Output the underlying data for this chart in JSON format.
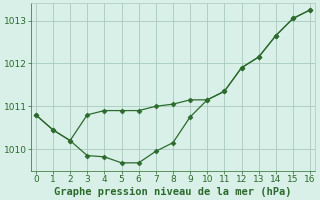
{
  "line_top_x": [
    0,
    1,
    2,
    3,
    4,
    5,
    6,
    7,
    8,
    9,
    10,
    11,
    12,
    13,
    14,
    15,
    16
  ],
  "line_top_y": [
    1010.8,
    1010.45,
    1010.2,
    1010.8,
    1010.9,
    1010.9,
    1010.9,
    1011.0,
    1011.05,
    1011.15,
    1011.15,
    1011.35,
    1011.9,
    1012.15,
    1012.65,
    1013.05,
    1013.25
  ],
  "line_bot_x": [
    0,
    1,
    2,
    3,
    4,
    5,
    6,
    7,
    8,
    9,
    10,
    11,
    12,
    13,
    14,
    15,
    16
  ],
  "line_bot_y": [
    1010.8,
    1010.45,
    1010.2,
    1009.85,
    1009.82,
    1009.68,
    1009.68,
    1009.95,
    1010.15,
    1010.75,
    1011.15,
    1011.35,
    1011.9,
    1012.15,
    1012.65,
    1013.05,
    1013.25
  ],
  "line_color": "#2d6a2d",
  "bg_color": "#d8f0e8",
  "grid_color": "#a8ccbc",
  "xlabel": "Graphe pression niveau de la mer (hPa)",
  "ylim": [
    1009.5,
    1013.4
  ],
  "xlim": [
    -0.3,
    16.3
  ],
  "yticks": [
    1010,
    1011,
    1012,
    1013
  ],
  "xticks": [
    0,
    1,
    2,
    3,
    4,
    5,
    6,
    7,
    8,
    9,
    10,
    11,
    12,
    13,
    14,
    15,
    16
  ],
  "xlabel_color": "#2d6a2d",
  "tick_color": "#2d6a2d",
  "label_fontsize": 7.5,
  "tick_fontsize": 6.5
}
